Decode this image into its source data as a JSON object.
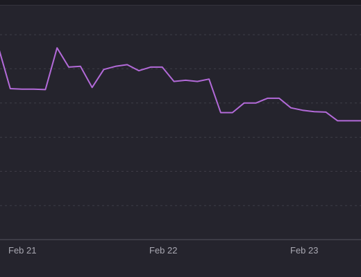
{
  "colors": {
    "background": "#25242d",
    "series": "#b36ad9",
    "grid": "#3f3e48",
    "tick_text": "#a9a8b2"
  },
  "chart_data": {
    "type": "line",
    "title": "",
    "xlabel": "",
    "ylabel": "",
    "grid": true,
    "grid_style": "dashed horizontal",
    "legend": "none",
    "x_ticks": [
      "Feb 21",
      "Feb 22",
      "Feb 23"
    ],
    "ylim": [
      0,
      100
    ],
    "series": [
      {
        "values": [
          80,
          63,
          62.8,
          62.8,
          62.6,
          80,
          72,
          72.3,
          63.5,
          71,
          72.3,
          73,
          70.5,
          72,
          72,
          66,
          66.5,
          66,
          67,
          53,
          53,
          57,
          57,
          59,
          59,
          55,
          54,
          53.4,
          53.2,
          49.6,
          49.6,
          49.6
        ]
      }
    ]
  }
}
